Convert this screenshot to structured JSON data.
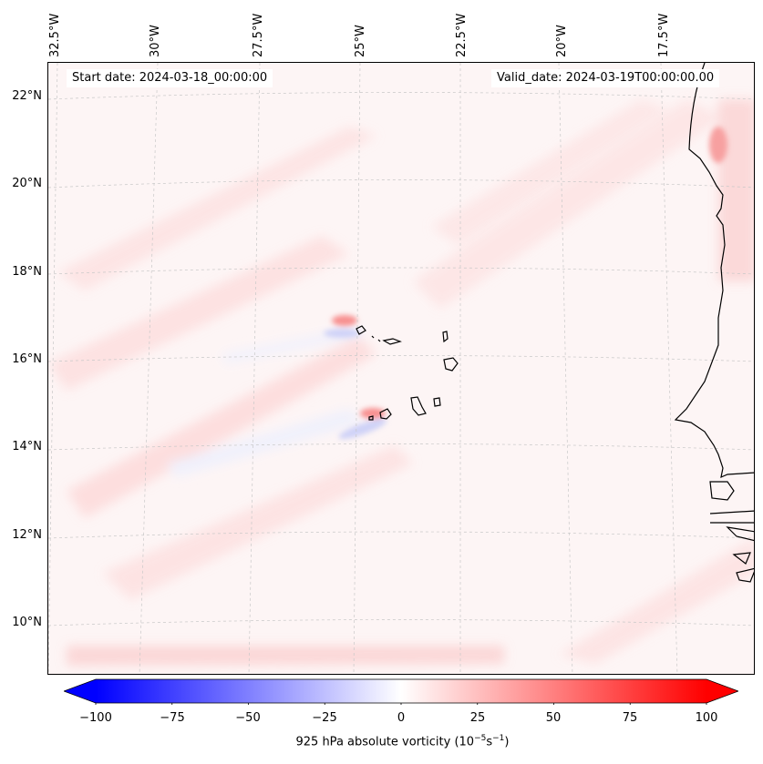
{
  "map": {
    "variable_title": "925 hPa absolute vorticity (10",
    "variable_exp1": "−5",
    "variable_mid": "s",
    "variable_exp2": "−1",
    "variable_end": ")",
    "start_date": "Start date: 2024-03-18_00:00:00",
    "valid_date": "Valid_date: 2024-03-19T00:00:00.00",
    "lon_labels": [
      "32.5°W",
      "30°W",
      "27.5°W",
      "25°W",
      "22.5°W",
      "20°W",
      "17.5°W"
    ],
    "lat_labels": [
      "22°N",
      "20°N",
      "18°N",
      "16°N",
      "14°N",
      "12°N",
      "10°N"
    ],
    "colorbar": {
      "min": -100,
      "max": 100,
      "ticks": [
        "−100",
        "−75",
        "−50",
        "−25",
        "0",
        "25",
        "50",
        "75",
        "100"
      ],
      "low_color": "#0000ff",
      "mid_color": "#ffffff",
      "high_color": "#ff0000"
    }
  }
}
